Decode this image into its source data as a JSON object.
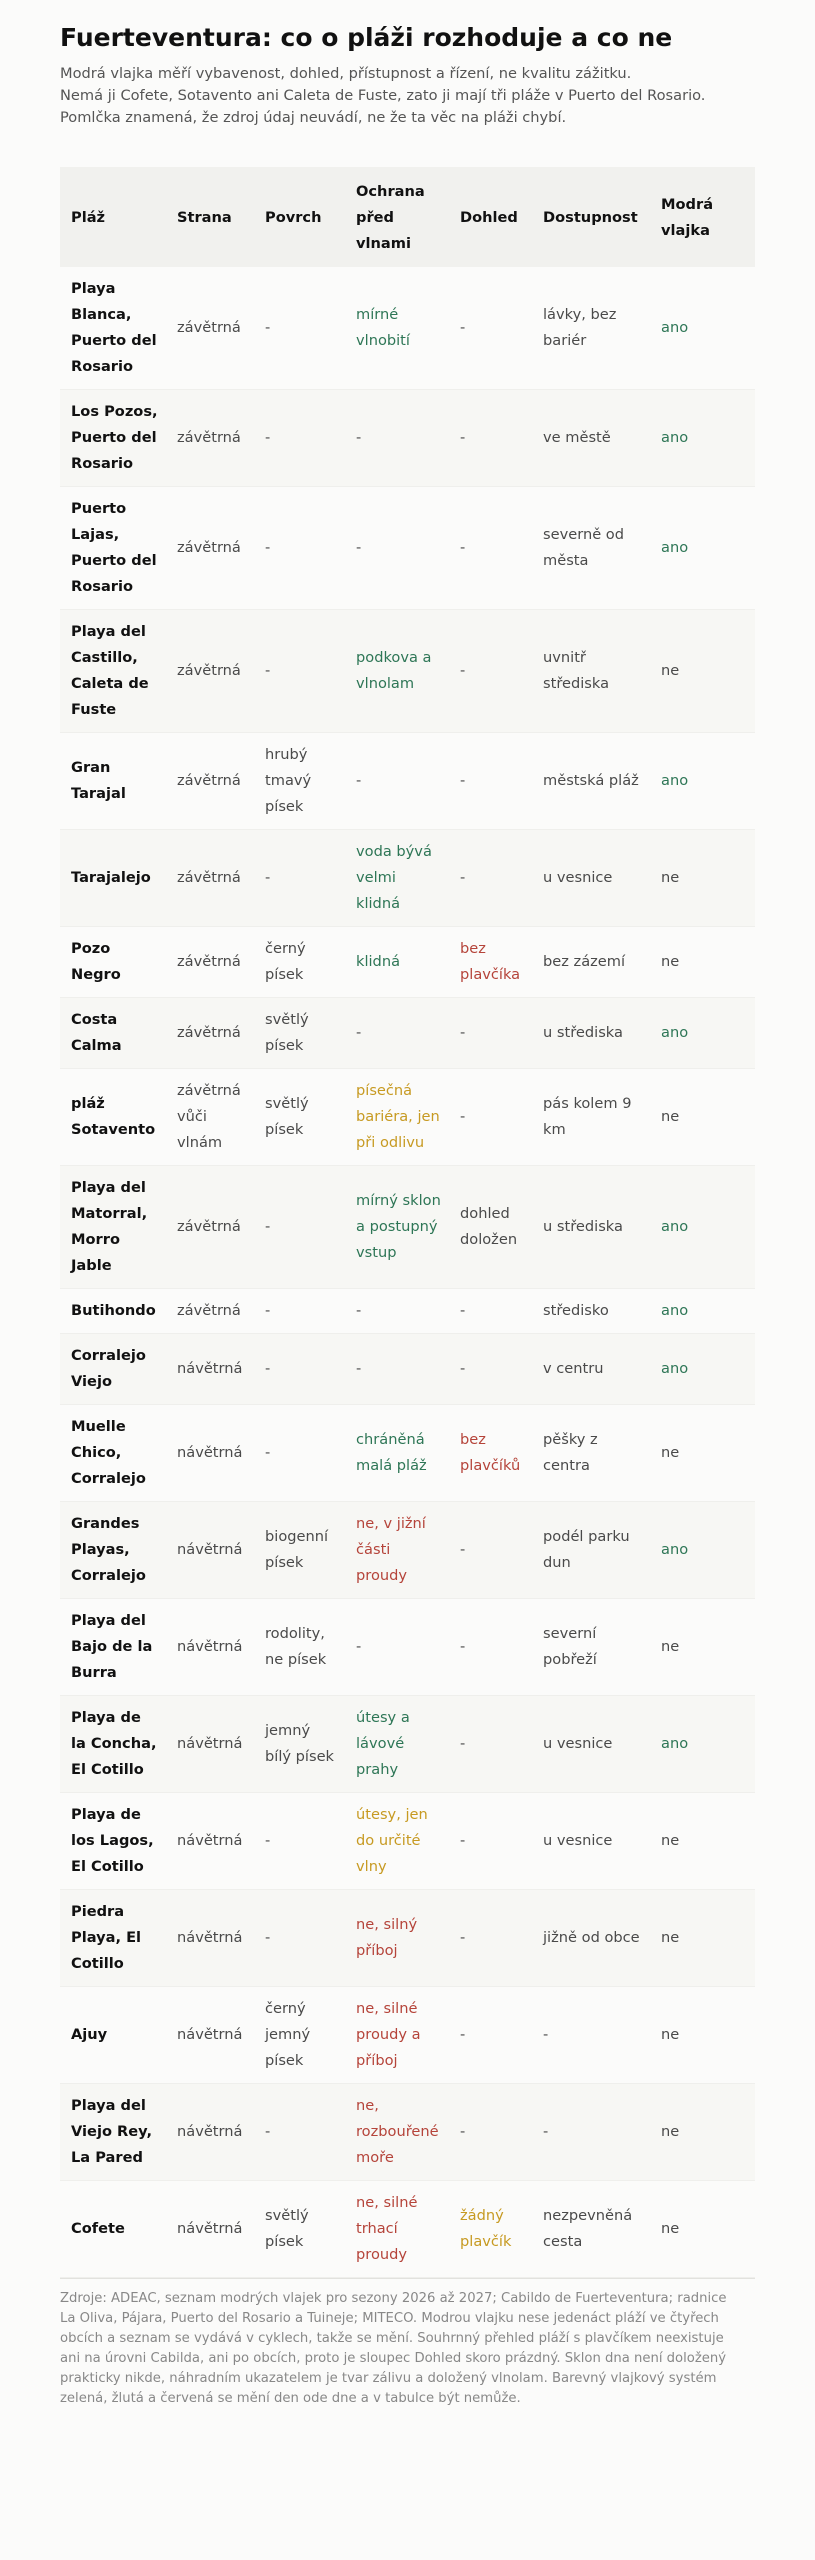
{
  "title": "Fuerteventura: co o pláži rozhoduje a co ne",
  "intro": [
    "Modrá vlajka měří vybavenost, dohled, přístupnost a řízení, ne kvalitu zážitku.",
    "Nemá ji Cofete, Sotavento ani Caleta de Fuste, zato ji mají tři pláže v Puerto del Rosario.",
    "Pomlčka znamená, že zdroj údaj neuvádí, ne že ta věc na pláži chybí."
  ],
  "table": {
    "headers": [
      "Pláž",
      "Strana",
      "Povrch",
      "Ochrana před vlnami",
      "Dohled",
      "Dostupnost",
      "Modrá vlajka"
    ],
    "rows": [
      {
        "name": "Playa Blanca, Puerto del Rosario",
        "side": "závětrná",
        "surface": "-",
        "protection": "mírné vlnobití",
        "protection_color": "green",
        "supervision": "-",
        "supervision_color": "",
        "access": "lávky, bez bariér",
        "flag": "ano"
      },
      {
        "name": "Los Pozos, Puerto del Rosario",
        "side": "závětrná",
        "surface": "-",
        "protection": "-",
        "protection_color": "",
        "supervision": "-",
        "supervision_color": "",
        "access": "ve městě",
        "flag": "ano"
      },
      {
        "name": "Puerto Lajas, Puerto del Rosario",
        "side": "závětrná",
        "surface": "-",
        "protection": "-",
        "protection_color": "",
        "supervision": "-",
        "supervision_color": "",
        "access": "severně od města",
        "flag": "ano"
      },
      {
        "name": "Playa del Castillo, Caleta de Fuste",
        "side": "závětrná",
        "surface": "-",
        "protection": "podkova a vlnolam",
        "protection_color": "green",
        "supervision": "-",
        "supervision_color": "",
        "access": "uvnitř střediska",
        "flag": "ne"
      },
      {
        "name": "Gran Tarajal",
        "side": "závětrná",
        "surface": "hrubý tmavý písek",
        "protection": "-",
        "protection_color": "",
        "supervision": "-",
        "supervision_color": "",
        "access": "městská pláž",
        "flag": "ano"
      },
      {
        "name": "Tarajalejo",
        "side": "závětrná",
        "surface": "-",
        "protection": "voda bývá velmi klidná",
        "protection_color": "green",
        "supervision": "-",
        "supervision_color": "",
        "access": "u vesnice",
        "flag": "ne"
      },
      {
        "name": "Pozo Negro",
        "side": "závětrná",
        "surface": "černý písek",
        "protection": "klidná",
        "protection_color": "green",
        "supervision": "bez plavčíka",
        "supervision_color": "red",
        "access": "bez zázemí",
        "flag": "ne"
      },
      {
        "name": "Costa Calma",
        "side": "závětrná",
        "surface": "světlý písek",
        "protection": "-",
        "protection_color": "",
        "supervision": "-",
        "supervision_color": "",
        "access": "u střediska",
        "flag": "ano"
      },
      {
        "name": "pláž Sotavento",
        "side": "závětrná vůči vlnám",
        "surface": "světlý písek",
        "protection": "písečná bariéra, jen při odlivu",
        "protection_color": "yellow",
        "supervision": "-",
        "supervision_color": "",
        "access": "pás kolem 9 km",
        "flag": "ne"
      },
      {
        "name": "Playa del Matorral, Morro Jable",
        "side": "závětrná",
        "surface": "-",
        "protection": "mírný sklon a postupný vstup",
        "protection_color": "green",
        "supervision": "dohled doložen",
        "supervision_color": "",
        "access": "u střediska",
        "flag": "ano"
      },
      {
        "name": "Butihondo",
        "side": "závětrná",
        "surface": "-",
        "protection": "-",
        "protection_color": "",
        "supervision": "-",
        "supervision_color": "",
        "access": "středisko",
        "flag": "ano"
      },
      {
        "name": "Corralejo Viejo",
        "side": "návětrná",
        "surface": "-",
        "protection": "-",
        "protection_color": "",
        "supervision": "-",
        "supervision_color": "",
        "access": "v centru",
        "flag": "ano"
      },
      {
        "name": "Muelle Chico, Corralejo",
        "side": "návětrná",
        "surface": "-",
        "protection": "chráněná malá pláž",
        "protection_color": "green",
        "supervision": "bez plavčíků",
        "supervision_color": "red",
        "access": "pěšky z centra",
        "flag": "ne"
      },
      {
        "name": "Grandes Playas, Corralejo",
        "side": "návětrná",
        "surface": "biogenní písek",
        "protection": "ne, v jižní části proudy",
        "protection_color": "red",
        "supervision": "-",
        "supervision_color": "",
        "access": "podél parku dun",
        "flag": "ano"
      },
      {
        "name": "Playa del Bajo de la Burra",
        "side": "návětrná",
        "surface": "rodolity, ne písek",
        "protection": "-",
        "protection_color": "",
        "supervision": "-",
        "supervision_color": "",
        "access": "severní pobřeží",
        "flag": "ne"
      },
      {
        "name": "Playa de la Concha, El Cotillo",
        "side": "návětrná",
        "surface": "jemný bílý písek",
        "protection": "útesy a lávové prahy",
        "protection_color": "green",
        "supervision": "-",
        "supervision_color": "",
        "access": "u vesnice",
        "flag": "ano"
      },
      {
        "name": "Playa de los Lagos, El Cotillo",
        "side": "návětrná",
        "surface": "-",
        "protection": "útesy, jen do určité vlny",
        "protection_color": "yellow",
        "supervision": "-",
        "supervision_color": "",
        "access": "u vesnice",
        "flag": "ne"
      },
      {
        "name": "Piedra Playa, El Cotillo",
        "side": "návětrná",
        "surface": "-",
        "protection": "ne, silný příboj",
        "protection_color": "red",
        "supervision": "-",
        "supervision_color": "",
        "access": "jižně od obce",
        "flag": "ne"
      },
      {
        "name": "Ajuy",
        "side": "návětrná",
        "surface": "černý jemný písek",
        "protection": "ne, silné proudy a příboj",
        "protection_color": "red",
        "supervision": "-",
        "supervision_color": "",
        "access": "-",
        "flag": "ne"
      },
      {
        "name": "Playa del Viejo Rey, La Pared",
        "side": "návětrná",
        "surface": "-",
        "protection": "ne, rozbouřené moře",
        "protection_color": "red",
        "supervision": "-",
        "supervision_color": "",
        "access": "-",
        "flag": "ne"
      },
      {
        "name": "Cofete",
        "side": "návětrná",
        "surface": "světlý písek",
        "protection": "ne, silné trhací proudy",
        "protection_color": "red",
        "supervision": "žádný plavčík",
        "supervision_color": "yellow",
        "access": "nezpevněná cesta",
        "flag": "ne"
      }
    ]
  },
  "colors": {
    "green": "#2e7656",
    "red": "#b5443a",
    "yellow": "#c79a22"
  },
  "footnote": [
    "Zdroje: ADEAC, seznam modrých vlajek pro sezony 2026 až 2027; Cabildo de Fuerteventura; radnice",
    "La Oliva, Pájara, Puerto del Rosario a Tuineje; MITECO. Modrou vlajku nese jedenáct pláží ve čtyřech",
    "obcích a seznam se vydává v cyklech, takže se mění. Souhrnný přehled pláží s plavčíkem neexistuje",
    "ani na úrovni Cabilda, ani po obcích, proto je sloupec Dohled skoro prázdný. Sklon dna není doložený",
    "prakticky nikde, náhradním ukazatelem je tvar zálivu a doložený vlnolam. Barevný vlajkový systém",
    "zelená, žlutá a červená se mění den ode dne a v tabulce být nemůže."
  ]
}
